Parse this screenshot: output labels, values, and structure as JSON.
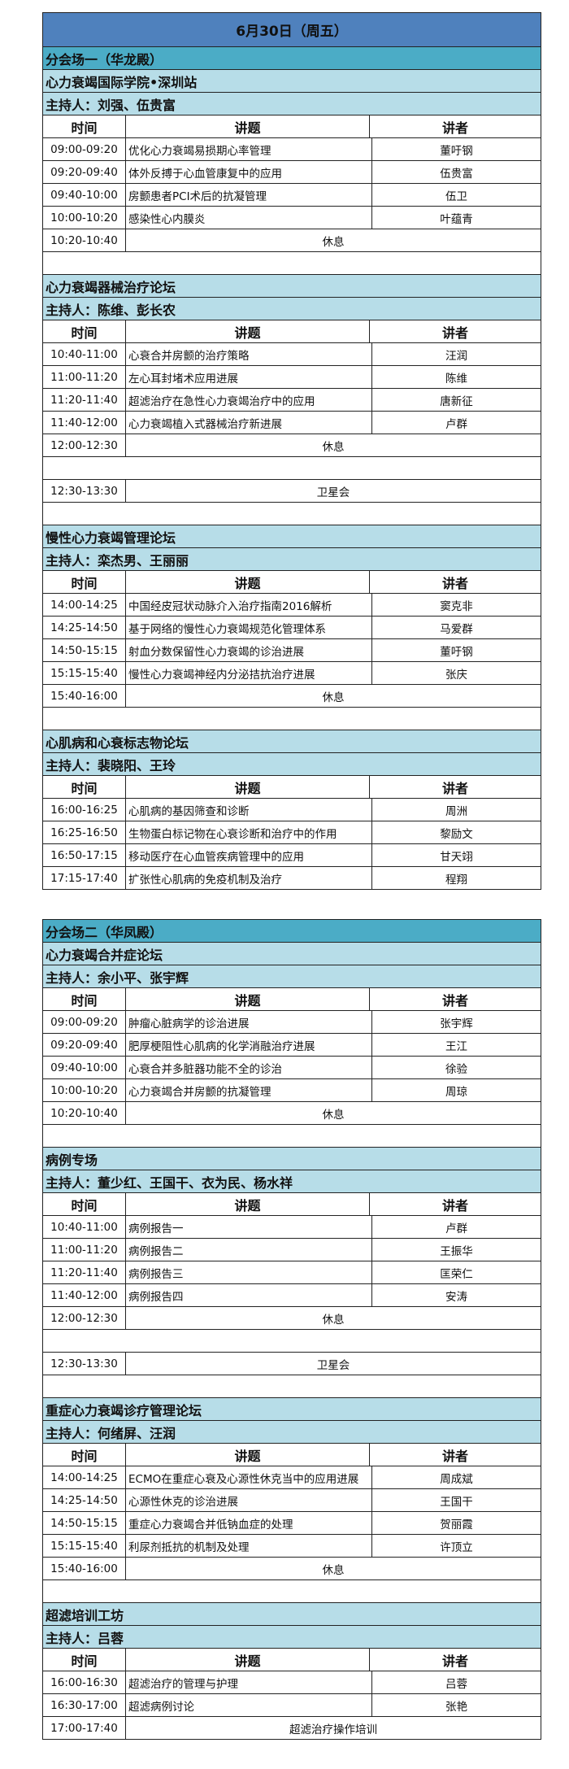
{
  "title": "6月30日（周五）",
  "columns": {
    "time": "时间",
    "topic": "讲题",
    "speaker": "讲者"
  },
  "colors": {
    "title_bg": "#4f81bd",
    "venue_bg": "#4bacc6",
    "forum_bg": "#b7dde8"
  },
  "venues": [
    {
      "name": "分会场一（华龙殿）",
      "forums": [
        {
          "name": "心力衰竭国际学院•深圳站",
          "host": "主持人：刘强、伍贵富",
          "rows": [
            {
              "time": "09:00-09:20",
              "topic": "优化心力衰竭易损期心率管理",
              "speaker": "董吁钢"
            },
            {
              "time": "09:20-09:40",
              "topic": "体外反搏于心血管康复中的应用",
              "speaker": "伍贵富"
            },
            {
              "time": "09:40-10:00",
              "topic": "房颤患者PCI术后的抗凝管理",
              "speaker": "伍卫"
            },
            {
              "time": "10:00-10:20",
              "topic": "感染性心内膜炎",
              "speaker": "叶蕴青"
            },
            {
              "time": "10:20-10:40",
              "span": "休息"
            },
            {
              "type": "blank"
            }
          ]
        },
        {
          "name": "心力衰竭器械治疗论坛",
          "host": "主持人：陈维、彭长农",
          "rows": [
            {
              "time": "10:40-11:00",
              "topic": "心衰合并房颤的治疗策略",
              "speaker": "汪润"
            },
            {
              "time": "11:00-11:20",
              "topic": "左心耳封堵术应用进展",
              "speaker": "陈维"
            },
            {
              "time": "11:20-11:40",
              "topic": "超滤治疗在急性心力衰竭治疗中的应用",
              "speaker": "唐新征"
            },
            {
              "time": "11:40-12:00",
              "topic": "心力衰竭植入式器械治疗新进展",
              "speaker": "卢群"
            },
            {
              "time": "12:00-12:30",
              "span": "休息"
            },
            {
              "type": "blank"
            },
            {
              "time": "12:30-13:30",
              "span": "卫星会"
            },
            {
              "type": "blank"
            }
          ]
        },
        {
          "name": "慢性心力衰竭管理论坛",
          "host": "主持人：栾杰男、王丽丽",
          "rows": [
            {
              "time": "14:00-14:25",
              "topic": "中国经皮冠状动脉介入治疗指南2016解析",
              "speaker": "窦克非"
            },
            {
              "time": "14:25-14:50",
              "topic": "基于网络的慢性心力衰竭规范化管理体系",
              "speaker": "马爱群"
            },
            {
              "time": "14:50-15:15",
              "topic": "射血分数保留性心力衰竭的诊治进展",
              "speaker": "董吁钢"
            },
            {
              "time": "15:15-15:40",
              "topic": "慢性心力衰竭神经内分泌拮抗治疗进展",
              "speaker": "张庆"
            },
            {
              "time": "15:40-16:00",
              "span": "休息"
            },
            {
              "type": "blank"
            }
          ]
        },
        {
          "name": "心肌病和心衰标志物论坛",
          "host": "主持人：裴晓阳、王玲",
          "rows": [
            {
              "time": "16:00-16:25",
              "topic": "心肌病的基因筛查和诊断",
              "speaker": "周洲"
            },
            {
              "time": "16:25-16:50",
              "topic": "生物蛋白标记物在心衰诊断和治疗中的作用",
              "speaker": "黎励文"
            },
            {
              "time": "16:50-17:15",
              "topic": "移动医疗在心血管疾病管理中的应用",
              "speaker": "甘天翊"
            },
            {
              "time": "17:15-17:40",
              "topic": "扩张性心肌病的免疫机制及治疗",
              "speaker": "程翔"
            }
          ]
        }
      ]
    },
    {
      "name": "分会场二（华凤殿）",
      "forums": [
        {
          "name": "心力衰竭合并症论坛",
          "host": "主持人：余小平、张宇辉",
          "rows": [
            {
              "time": "09:00-09:20",
              "topic": "肿瘤心脏病学的诊治进展",
              "speaker": "张宇辉"
            },
            {
              "time": "09:20-09:40",
              "topic": "肥厚梗阻性心肌病的化学消融治疗进展",
              "speaker": "王江"
            },
            {
              "time": "09:40-10:00",
              "topic": "心衰合并多脏器功能不全的诊治",
              "speaker": "徐验"
            },
            {
              "time": "10:00-10:20",
              "topic": "心力衰竭合并房颤的抗凝管理",
              "speaker": "周琼"
            },
            {
              "time": "10:20-10:40",
              "span": "休息"
            },
            {
              "type": "blank"
            }
          ]
        },
        {
          "name": "病例专场",
          "host": "主持人：董少红、王国干、衣为民、杨水祥",
          "rows": [
            {
              "time": "10:40-11:00",
              "topic": "病例报告一",
              "speaker": "卢群"
            },
            {
              "time": "11:00-11:20",
              "topic": "病例报告二",
              "speaker": "王振华"
            },
            {
              "time": "11:20-11:40",
              "topic": "病例报告三",
              "speaker": "匡荣仁"
            },
            {
              "time": "11:40-12:00",
              "topic": "病例报告四",
              "speaker": "安涛"
            },
            {
              "time": "12:00-12:30",
              "span": "休息"
            },
            {
              "type": "blank"
            },
            {
              "time": "12:30-13:30",
              "span": "卫星会"
            },
            {
              "type": "blank"
            }
          ]
        },
        {
          "name": "重症心力衰竭诊疗管理论坛",
          "host": "主持人：何绪屏、汪润",
          "rows": [
            {
              "time": "14:00-14:25",
              "topic": "ECMO在重症心衰及心源性休克当中的应用进展",
              "speaker": "周成斌"
            },
            {
              "time": "14:25-14:50",
              "topic": "心源性休克的诊治进展",
              "speaker": "王国干"
            },
            {
              "time": "14:50-15:15",
              "topic": "重症心力衰竭合并低钠血症的处理",
              "speaker": "贺丽霞"
            },
            {
              "time": "15:15-15:40",
              "topic": "利尿剂抵抗的机制及处理",
              "speaker": "许顶立"
            },
            {
              "time": "15:40-16:00",
              "span": "休息"
            },
            {
              "type": "blank"
            }
          ]
        },
        {
          "name": "超滤培训工坊",
          "host": "主持人：吕蓉",
          "rows": [
            {
              "time": "16:00-16:30",
              "topic": "超滤治疗的管理与护理",
              "speaker": "吕蓉"
            },
            {
              "time": "16:30-17:00",
              "topic": "超滤病例讨论",
              "speaker": "张艳"
            },
            {
              "time": "17:00-17:40",
              "span": "超滤治疗操作培训"
            }
          ]
        }
      ]
    }
  ]
}
